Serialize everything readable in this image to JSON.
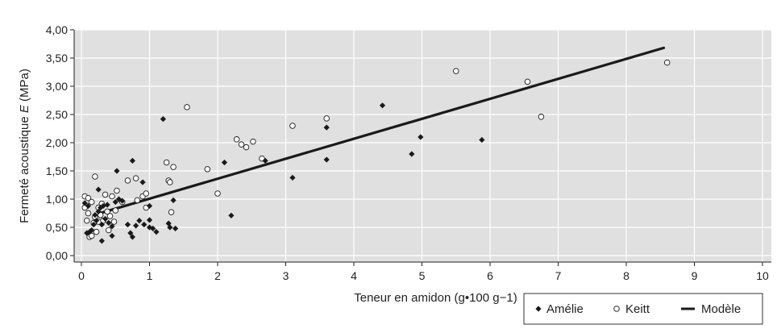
{
  "chart_data": {
    "type": "scatter",
    "xlabel": "Teneur en amidon (g•100 g−1)",
    "ylabel_prefix": "Fermeté acoustique ",
    "ylabel_italic": "E",
    "ylabel_suffix": " (MPa)",
    "xlim": [
      0,
      10
    ],
    "ylim": [
      0,
      4
    ],
    "x_ticks": [
      0,
      1,
      2,
      3,
      4,
      5,
      6,
      7,
      8,
      9,
      10
    ],
    "x_tick_labels": [
      "0",
      "1",
      "2",
      "3",
      "4",
      "5",
      "6",
      "7",
      "8",
      "9",
      "10"
    ],
    "y_ticks": [
      0,
      0.5,
      1,
      1.5,
      2,
      2.5,
      3,
      3.5,
      4
    ],
    "y_tick_labels": [
      "0,00",
      "0,50",
      "1,00",
      "1,50",
      "2,00",
      "2,50",
      "3,00",
      "3,50",
      "4,00"
    ],
    "grid": true,
    "legend_position": "bottom-right",
    "colors": {
      "background": "#e0e0e0",
      "grid": "#ffffff",
      "marker": "#1a1a1a",
      "model_line": "#1a1a1a"
    },
    "series": [
      {
        "name": "Amélie",
        "marker": "diamond",
        "points": [
          [
            0.05,
            0.93
          ],
          [
            0.1,
            0.88
          ],
          [
            0.08,
            0.4
          ],
          [
            0.12,
            0.42
          ],
          [
            0.15,
            0.45
          ],
          [
            0.18,
            0.55
          ],
          [
            0.2,
            0.72
          ],
          [
            0.22,
            0.62
          ],
          [
            0.25,
            0.78
          ],
          [
            0.25,
            1.17
          ],
          [
            0.28,
            0.85
          ],
          [
            0.3,
            0.55
          ],
          [
            0.3,
            0.26
          ],
          [
            0.32,
            0.88
          ],
          [
            0.35,
            0.65
          ],
          [
            0.38,
            0.9
          ],
          [
            0.4,
            0.58
          ],
          [
            0.45,
            0.52
          ],
          [
            0.45,
            0.35
          ],
          [
            0.5,
            0.95
          ],
          [
            0.52,
            1.5
          ],
          [
            0.55,
            1.0
          ],
          [
            0.6,
            0.97
          ],
          [
            0.68,
            0.55
          ],
          [
            0.72,
            0.4
          ],
          [
            0.75,
            0.33
          ],
          [
            0.75,
            1.68
          ],
          [
            0.8,
            0.53
          ],
          [
            0.85,
            0.62
          ],
          [
            0.9,
            1.3
          ],
          [
            0.92,
            0.55
          ],
          [
            1.0,
            0.63
          ],
          [
            1.0,
            0.88
          ],
          [
            1.0,
            0.5
          ],
          [
            1.05,
            0.48
          ],
          [
            1.1,
            0.42
          ],
          [
            1.2,
            2.42
          ],
          [
            1.28,
            0.57
          ],
          [
            1.3,
            0.5
          ],
          [
            1.35,
            0.98
          ],
          [
            1.38,
            0.48
          ],
          [
            2.1,
            1.65
          ],
          [
            2.2,
            0.71
          ],
          [
            2.7,
            1.68
          ],
          [
            3.1,
            1.38
          ],
          [
            3.6,
            2.27
          ],
          [
            3.6,
            1.7
          ],
          [
            4.42,
            2.66
          ],
          [
            4.85,
            1.8
          ],
          [
            4.98,
            2.1
          ],
          [
            5.88,
            2.05
          ]
        ]
      },
      {
        "name": "Keitt",
        "marker": "circle",
        "points": [
          [
            0.05,
            1.05
          ],
          [
            0.05,
            0.85
          ],
          [
            0.08,
            0.62
          ],
          [
            0.1,
            0.75
          ],
          [
            0.1,
            1.02
          ],
          [
            0.12,
            0.33
          ],
          [
            0.15,
            0.35
          ],
          [
            0.15,
            0.95
          ],
          [
            0.18,
            0.58
          ],
          [
            0.2,
            0.68
          ],
          [
            0.2,
            1.4
          ],
          [
            0.22,
            0.42
          ],
          [
            0.25,
            0.6
          ],
          [
            0.25,
            0.85
          ],
          [
            0.28,
            0.72
          ],
          [
            0.3,
            0.92
          ],
          [
            0.32,
            0.62
          ],
          [
            0.35,
            1.08
          ],
          [
            0.38,
            0.78
          ],
          [
            0.4,
            0.45
          ],
          [
            0.42,
            0.7
          ],
          [
            0.45,
            1.05
          ],
          [
            0.48,
            0.6
          ],
          [
            0.5,
            0.8
          ],
          [
            0.52,
            1.15
          ],
          [
            0.6,
            0.95
          ],
          [
            0.68,
            1.33
          ],
          [
            0.8,
            1.37
          ],
          [
            0.82,
            0.98
          ],
          [
            0.9,
            1.05
          ],
          [
            0.95,
            1.1
          ],
          [
            0.95,
            0.85
          ],
          [
            1.25,
            1.65
          ],
          [
            1.28,
            1.33
          ],
          [
            1.3,
            1.3
          ],
          [
            1.32,
            0.77
          ],
          [
            1.35,
            1.57
          ],
          [
            1.55,
            2.63
          ],
          [
            1.85,
            1.53
          ],
          [
            2.0,
            1.1
          ],
          [
            2.28,
            2.06
          ],
          [
            2.35,
            1.97
          ],
          [
            2.42,
            1.92
          ],
          [
            2.52,
            2.02
          ],
          [
            2.65,
            1.72
          ],
          [
            3.1,
            2.3
          ],
          [
            3.6,
            2.43
          ],
          [
            5.5,
            3.27
          ],
          [
            6.55,
            3.08
          ],
          [
            6.75,
            2.46
          ],
          [
            8.6,
            3.42
          ]
        ]
      },
      {
        "name": "Modèle",
        "marker": "line",
        "points": [
          [
            0.3,
            0.76
          ],
          [
            8.55,
            3.68
          ]
        ]
      }
    ]
  }
}
